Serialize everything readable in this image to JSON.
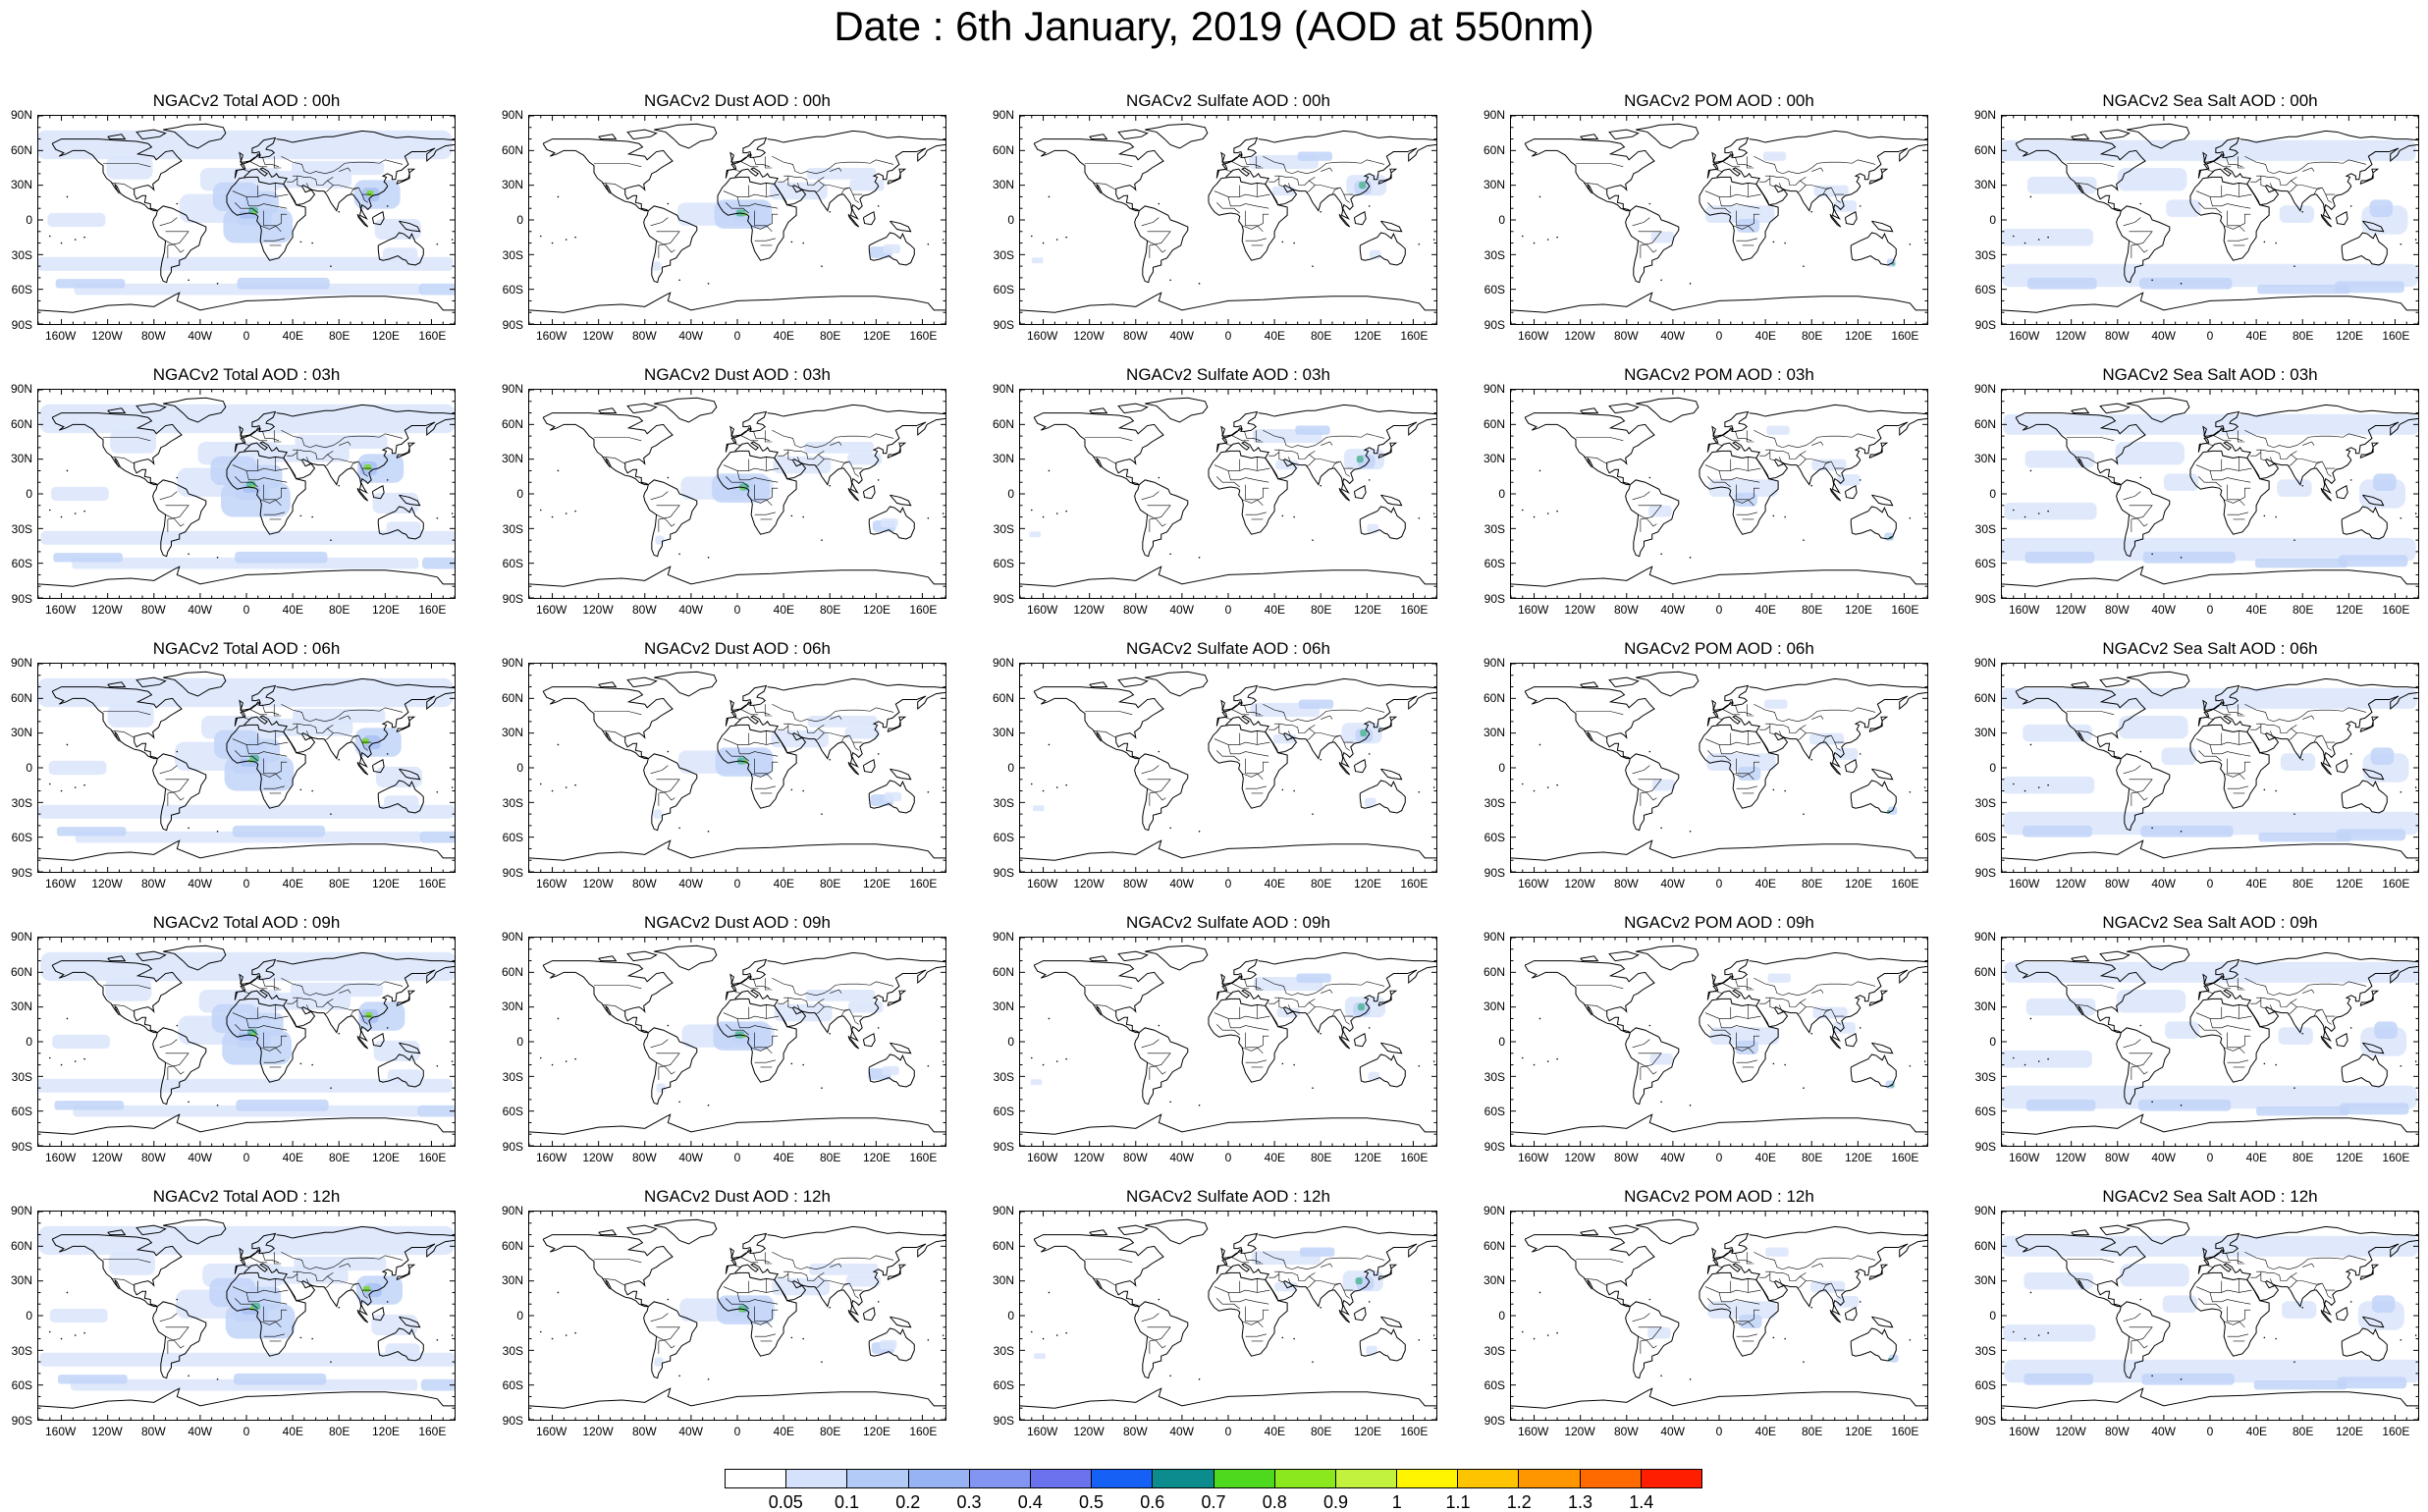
{
  "title": "Date : 6th January, 2019 (AOD at 550nm)",
  "lat_labels": [
    "90N",
    "60N",
    "30N",
    "0",
    "30S",
    "60S",
    "90S"
  ],
  "lon_labels": [
    "160W",
    "120W",
    "80W",
    "40W",
    "0",
    "40E",
    "80E",
    "120E",
    "160E"
  ],
  "lat_values": [
    90,
    60,
    30,
    0,
    -30,
    -60,
    -90
  ],
  "lon_values": [
    -160,
    -120,
    -80,
    -40,
    0,
    40,
    80,
    120,
    160
  ],
  "lon_range": [
    -180,
    180
  ],
  "lat_range": [
    -90,
    90
  ],
  "panels": [
    {
      "title": "NGACv2 Total AOD : 00h",
      "species": "total"
    },
    {
      "title": "NGACv2 Dust AOD : 00h",
      "species": "dust"
    },
    {
      "title": "NGACv2 Sulfate AOD : 00h",
      "species": "sulfate"
    },
    {
      "title": "NGACv2 POM AOD : 00h",
      "species": "pom"
    },
    {
      "title": "NGACv2 Sea Salt AOD : 00h",
      "species": "seasalt"
    },
    {
      "title": "NGACv2 Total AOD : 03h",
      "species": "total"
    },
    {
      "title": "NGACv2 Dust AOD : 03h",
      "species": "dust"
    },
    {
      "title": "NGACv2 Sulfate AOD : 03h",
      "species": "sulfate"
    },
    {
      "title": "NGACv2 POM AOD : 03h",
      "species": "pom"
    },
    {
      "title": "NGACv2 Sea Salt AOD : 03h",
      "species": "seasalt"
    },
    {
      "title": "NGACv2 Total AOD : 06h",
      "species": "total"
    },
    {
      "title": "NGACv2 Dust AOD : 06h",
      "species": "dust"
    },
    {
      "title": "NGACv2 Sulfate AOD : 06h",
      "species": "sulfate"
    },
    {
      "title": "NGACv2 POM AOD : 06h",
      "species": "pom"
    },
    {
      "title": "NGACv2 Sea Salt AOD : 06h",
      "species": "seasalt"
    },
    {
      "title": "NGACv2 Total AOD : 09h",
      "species": "total"
    },
    {
      "title": "NGACv2 Dust AOD : 09h",
      "species": "dust"
    },
    {
      "title": "NGACv2 Sulfate AOD : 09h",
      "species": "sulfate"
    },
    {
      "title": "NGACv2 POM AOD : 09h",
      "species": "pom"
    },
    {
      "title": "NGACv2 Sea Salt  AOD : 09h",
      "species": "seasalt"
    },
    {
      "title": "NGACv2 Total AOD :  12h",
      "species": "total"
    },
    {
      "title": "NGACv2 Dust AOD : 12h",
      "species": "dust"
    },
    {
      "title": "NGACv2 Sulfate AOD : 12h",
      "species": "sulfate"
    },
    {
      "title": "NGACv2 POM  AOD : 12h",
      "species": "pom"
    },
    {
      "title": "NGACv2 Sea Salt AOD : 12h",
      "species": "seasalt"
    }
  ],
  "colorbar": {
    "labels": [
      "0.05",
      "0.1",
      "0.2",
      "0.3",
      "0.4",
      "0.5",
      "0.6",
      "0.7",
      "0.8",
      "0.9",
      "1",
      "1.1",
      "1.2",
      "1.3",
      "1.4"
    ],
    "colors": [
      "#ffffff",
      "#d6e2fb",
      "#b3cbf7",
      "#97b3f4",
      "#8295f2",
      "#6a72ee",
      "#1560f5",
      "#0c8c8c",
      "#4ed81e",
      "#8ae81c",
      "#c2f23e",
      "#fff500",
      "#ffc400",
      "#ff9600",
      "#ff6a00",
      "#ff1f00"
    ]
  },
  "plume_colors": [
    "#dbe5fb",
    "#c1d3f8",
    "#a9c0f5",
    "#5eb8a0",
    "#7bd83a"
  ]
}
